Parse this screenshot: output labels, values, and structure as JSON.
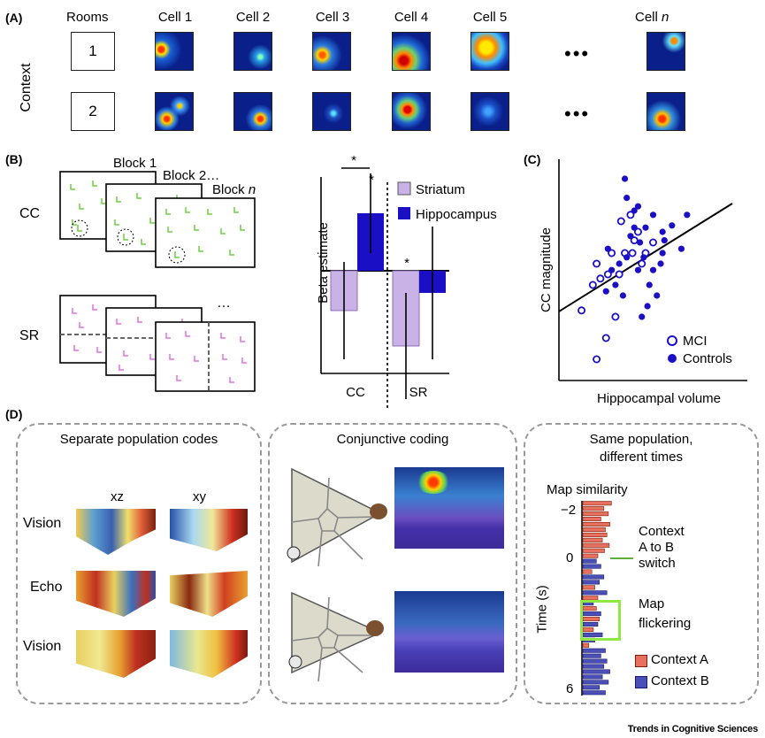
{
  "panelA": {
    "label": "(A)",
    "rooms_label": "Rooms",
    "context_label": "Context",
    "cells": [
      "Cell 1",
      "Cell 2",
      "Cell 3",
      "Cell 4",
      "Cell 5"
    ],
    "cell_n_prefix": "Cell",
    "cell_n_var": "n",
    "ellipsis": "•••",
    "rooms": [
      "1",
      "2"
    ]
  },
  "panelB": {
    "label": "(B)",
    "cc_label": "CC",
    "sr_label": "SR",
    "block1": "Block 1",
    "block2": "Block 2",
    "block2_dots": "…",
    "blockn_prefix": "Block",
    "blockn_var": "n",
    "sr_dots": "…",
    "ylabel": "Beta estimate",
    "star": "*"
  },
  "panelC": {
    "label": "(C)",
    "xlabel": "Hippocampal volume",
    "ylabel": "CC magnitude",
    "legend_mci": "MCI",
    "legend_controls": "Controls"
  },
  "panelD": {
    "label": "(D)",
    "box1_title": "Separate population codes",
    "col_xz": "xz",
    "col_xy": "xy",
    "rows": [
      "Vision",
      "Echo",
      "Vision"
    ],
    "box2_title": "Conjunctive coding",
    "box3_title_1": "Same population,",
    "box3_title_2": "different times",
    "map_similarity": "Map similarity",
    "time_label": "Time (s)",
    "ticks": [
      "−2",
      "0",
      "6"
    ],
    "context_switch_1": "Context",
    "context_switch_2": "A to B",
    "context_switch_3": "switch",
    "flicker_1": "Map",
    "flicker_2": "flickering",
    "legend_a": "Context A",
    "legend_b": "Context B"
  },
  "credit": "Trends in Cognitive Sciences",
  "chart_data": [
    {
      "type": "bar",
      "categories": [
        "CC",
        "SR"
      ],
      "series": [
        {
          "name": "Striatum",
          "values": [
            -0.45,
            -0.85
          ]
        },
        {
          "name": "Hippocampus",
          "values": [
            0.65,
            -0.25
          ]
        }
      ],
      "ylabel": "Beta estimate",
      "significance": [
        "*",
        "*",
        "*"
      ],
      "legend": "top-right",
      "colors": {
        "Striatum": "#c9b3e6",
        "Hippocampus": "#1a0fc4"
      }
    },
    {
      "type": "scatter",
      "xlabel": "Hippocampal volume",
      "ylabel": "CC magnitude",
      "series": [
        {
          "name": "MCI",
          "marker": "open-circle",
          "points": [
            [
              0.3,
              0.3
            ],
            [
              0.28,
              0.6
            ],
            [
              0.22,
              0.48
            ],
            [
              0.18,
              0.45
            ],
            [
              0.12,
              0.33
            ],
            [
              0.2,
              0.55
            ],
            [
              0.35,
              0.6
            ],
            [
              0.4,
              0.66
            ],
            [
              0.42,
              0.7
            ],
            [
              0.46,
              0.6
            ],
            [
              0.33,
              0.75
            ],
            [
              0.38,
              0.78
            ],
            [
              0.5,
              0.65
            ],
            [
              0.25,
              0.2
            ],
            [
              0.2,
              0.1
            ],
            [
              0.44,
              0.55
            ],
            [
              0.26,
              0.5
            ],
            [
              0.39,
              0.6
            ],
            [
              0.32,
              0.5
            ]
          ]
        },
        {
          "name": "Controls",
          "marker": "filled-circle",
          "points": [
            [
              0.35,
              0.95
            ],
            [
              0.36,
              0.86
            ],
            [
              0.4,
              0.8
            ],
            [
              0.5,
              0.78
            ],
            [
              0.55,
              0.7
            ],
            [
              0.6,
              0.73
            ],
            [
              0.65,
              0.62
            ],
            [
              0.68,
              0.78
            ],
            [
              0.55,
              0.6
            ],
            [
              0.45,
              0.58
            ],
            [
              0.42,
              0.52
            ],
            [
              0.48,
              0.45
            ],
            [
              0.52,
              0.4
            ],
            [
              0.47,
              0.35
            ],
            [
              0.44,
              0.3
            ],
            [
              0.34,
              0.4
            ],
            [
              0.3,
              0.45
            ],
            [
              0.28,
              0.52
            ],
            [
              0.26,
              0.62
            ],
            [
              0.38,
              0.68
            ],
            [
              0.4,
              0.72
            ],
            [
              0.43,
              0.65
            ],
            [
              0.5,
              0.52
            ],
            [
              0.36,
              0.58
            ],
            [
              0.32,
              0.55
            ],
            [
              0.46,
              0.72
            ],
            [
              0.42,
              0.82
            ],
            [
              0.56,
              0.66
            ],
            [
              0.25,
              0.42
            ],
            [
              0.54,
              0.55
            ]
          ]
        }
      ],
      "fit_line": true
    }
  ]
}
